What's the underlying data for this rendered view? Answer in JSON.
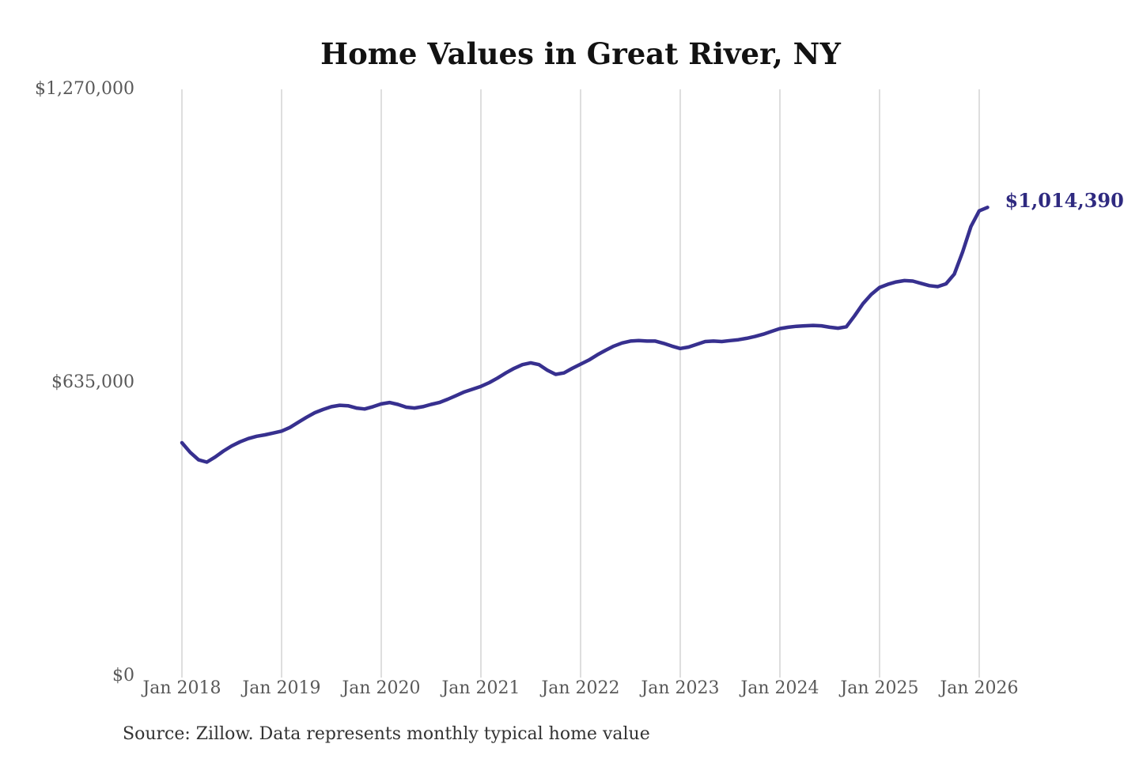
{
  "source_note": "Source: Zillow. Data represents monthly typical home value",
  "latest_value_label": "$1,014,390",
  "colors": {
    "line": "#37308f",
    "latest_label": "#2f2a80",
    "grid": "#cccccc",
    "axis_text": "#595959",
    "title_text": "#121212",
    "source_text": "#333333"
  },
  "chart_data": {
    "type": "line",
    "title": "Home Values in Great River, NY",
    "x_start_month": "Jan 2018",
    "x_end_month": "Feb 2026",
    "points_per_year": 12,
    "x_tick_labels": [
      "Jan 2018",
      "Jan 2019",
      "Jan 2020",
      "Jan 2021",
      "Jan 2022",
      "Jan 2023",
      "Jan 2024",
      "Jan 2025",
      "Jan 2026"
    ],
    "y_ticks": [
      0,
      635000,
      1270000
    ],
    "y_tick_labels": [
      "$0",
      "$635,000",
      "$1,270,000"
    ],
    "ylim": [
      0,
      1270000
    ],
    "grid": "vertical",
    "legend": "none",
    "latest_value": 1014390,
    "series": [
      {
        "name": "Monthly typical home value",
        "values": [
          505000,
          484000,
          468000,
          463000,
          474000,
          487000,
          498000,
          507000,
          514000,
          519000,
          522000,
          526000,
          530000,
          538000,
          549000,
          560000,
          570000,
          577000,
          583000,
          586000,
          585000,
          580000,
          578000,
          583000,
          589000,
          592000,
          588000,
          582000,
          580000,
          583000,
          588000,
          592000,
          599000,
          607000,
          615000,
          621000,
          627000,
          635000,
          645000,
          656000,
          666000,
          674000,
          678000,
          674000,
          662000,
          653000,
          656000,
          666000,
          675000,
          684000,
          695000,
          705000,
          714000,
          721000,
          725000,
          726000,
          725000,
          725000,
          720000,
          714000,
          709000,
          712000,
          718000,
          724000,
          725000,
          724000,
          726000,
          728000,
          731000,
          735000,
          740000,
          746000,
          752000,
          755000,
          757000,
          758000,
          759000,
          758000,
          755000,
          753000,
          756000,
          780000,
          806000,
          826000,
          841000,
          848000,
          853000,
          856000,
          855000,
          850000,
          845000,
          843000,
          849000,
          870000,
          918000,
          973000,
          1007000,
          1014390
        ]
      }
    ]
  }
}
